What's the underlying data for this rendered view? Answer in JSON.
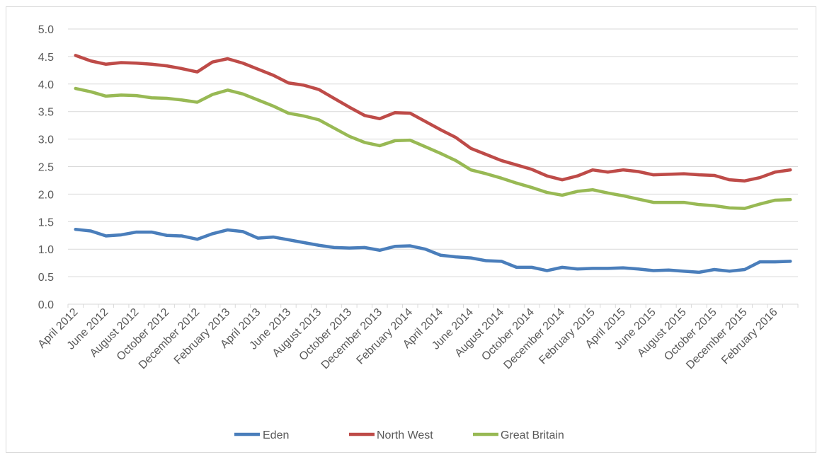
{
  "chart_data": {
    "type": "line",
    "title": "",
    "xlabel": "",
    "ylabel": "",
    "ylim": [
      0,
      5
    ],
    "y_ticks": [
      "0.0",
      "0.5",
      "1.0",
      "1.5",
      "2.0",
      "2.5",
      "3.0",
      "3.5",
      "4.0",
      "4.5",
      "5.0"
    ],
    "grid": "horizontal",
    "legend_position": "bottom",
    "categories": [
      "April 2012",
      "May 2012",
      "June 2012",
      "July 2012",
      "August 2012",
      "September 2012",
      "October 2012",
      "November 2012",
      "December 2012",
      "January 2013",
      "February 2013",
      "March 2013",
      "April 2013",
      "May 2013",
      "June 2013",
      "July 2013",
      "August 2013",
      "September 2013",
      "October 2013",
      "November 2013",
      "December 2013",
      "January 2014",
      "February 2014",
      "March 2014",
      "April 2014",
      "May 2014",
      "June 2014",
      "July 2014",
      "August 2014",
      "September 2014",
      "October 2014",
      "November 2014",
      "December 2014",
      "January 2015",
      "February 2015",
      "March 2015",
      "April 2015",
      "May 2015",
      "June 2015",
      "July 2015",
      "August 2015",
      "September 2015",
      "October 2015",
      "November 2015",
      "December 2015",
      "January 2016",
      "February 2016",
      "March 2016"
    ],
    "tick_labels": [
      "April 2012",
      "June 2012",
      "August 2012",
      "October 2012",
      "December 2012",
      "February 2013",
      "April 2013",
      "June 2013",
      "August 2013",
      "October 2013",
      "December 2013",
      "February 2014",
      "April 2014",
      "June 2014",
      "August 2014",
      "October 2014",
      "December 2014",
      "February 2015",
      "April 2015",
      "June 2015",
      "August 2015",
      "October 2015",
      "December 2015",
      "February 2016"
    ],
    "series": [
      {
        "name": "Eden",
        "color": "#4a7ebb",
        "values": [
          1.36,
          1.33,
          1.24,
          1.26,
          1.31,
          1.31,
          1.25,
          1.24,
          1.18,
          1.28,
          1.35,
          1.32,
          1.2,
          1.22,
          1.17,
          1.12,
          1.07,
          1.03,
          1.02,
          1.03,
          0.98,
          1.05,
          1.06,
          1.0,
          0.89,
          0.86,
          0.84,
          0.79,
          0.78,
          0.67,
          0.67,
          0.61,
          0.67,
          0.64,
          0.65,
          0.65,
          0.66,
          0.64,
          0.61,
          0.62,
          0.6,
          0.58,
          0.63,
          0.6,
          0.63,
          0.77,
          0.77,
          0.78
        ]
      },
      {
        "name": "North West",
        "color": "#be4b48",
        "values": [
          4.52,
          4.42,
          4.36,
          4.39,
          4.38,
          4.36,
          4.33,
          4.28,
          4.22,
          4.4,
          4.46,
          4.38,
          4.27,
          4.16,
          4.02,
          3.98,
          3.9,
          3.74,
          3.58,
          3.43,
          3.37,
          3.48,
          3.47,
          3.32,
          3.17,
          3.03,
          2.83,
          2.72,
          2.61,
          2.53,
          2.45,
          2.33,
          2.26,
          2.33,
          2.44,
          2.4,
          2.44,
          2.41,
          2.35,
          2.36,
          2.37,
          2.35,
          2.34,
          2.26,
          2.24,
          2.3,
          2.4,
          2.44
        ]
      },
      {
        "name": "Great Britain",
        "color": "#98b954",
        "values": [
          3.92,
          3.86,
          3.78,
          3.8,
          3.79,
          3.75,
          3.74,
          3.71,
          3.67,
          3.81,
          3.89,
          3.82,
          3.71,
          3.6,
          3.47,
          3.42,
          3.35,
          3.2,
          3.05,
          2.94,
          2.88,
          2.97,
          2.98,
          2.86,
          2.74,
          2.61,
          2.44,
          2.37,
          2.29,
          2.2,
          2.12,
          2.03,
          1.98,
          2.05,
          2.08,
          2.02,
          1.97,
          1.91,
          1.85,
          1.85,
          1.85,
          1.81,
          1.79,
          1.75,
          1.74,
          1.82,
          1.89,
          1.9
        ]
      }
    ]
  }
}
